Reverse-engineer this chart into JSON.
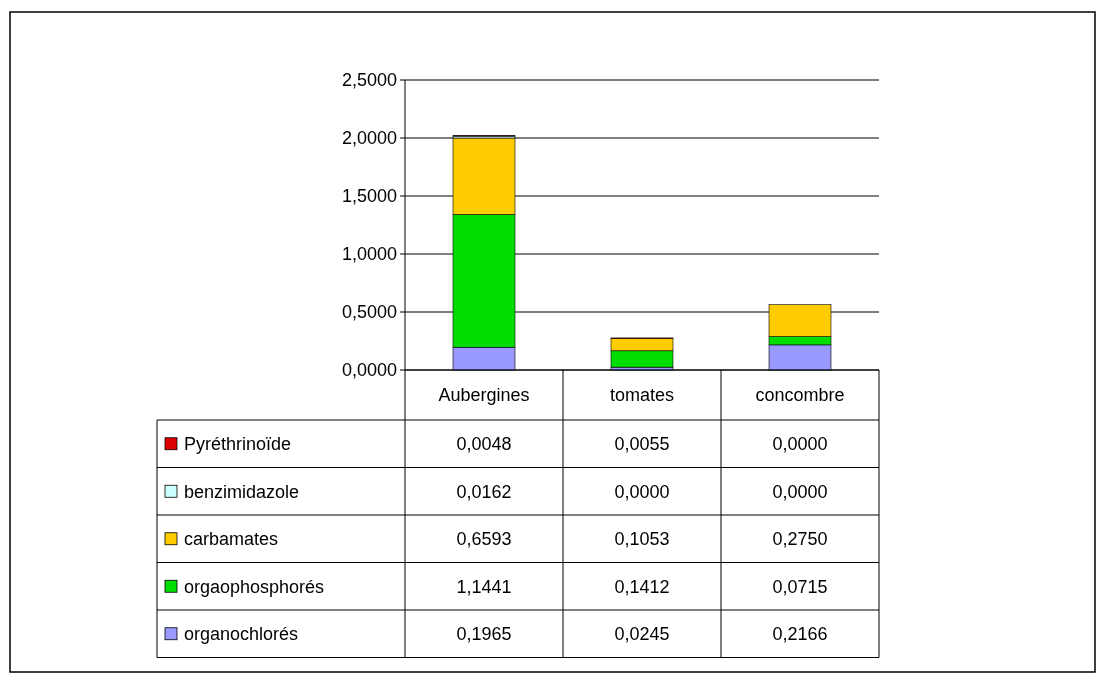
{
  "chart_data": {
    "type": "bar",
    "stacked": true,
    "categories": [
      "Aubergines",
      "tomates",
      "concombre"
    ],
    "series": [
      {
        "name": "organochlorés",
        "color": "#9999ff",
        "values": [
          0.1965,
          0.0245,
          0.2166
        ],
        "value_labels": [
          "0,1965",
          "0,0245",
          "0,2166"
        ]
      },
      {
        "name": "orgaophosphorés",
        "color": "#00dd00",
        "values": [
          1.1441,
          0.1412,
          0.0715
        ],
        "value_labels": [
          "1,1441",
          "0,1412",
          "0,0715"
        ]
      },
      {
        "name": "carbamates",
        "color": "#ffcc00",
        "values": [
          0.6593,
          0.1053,
          0.275
        ],
        "value_labels": [
          "0,6593",
          "0,1053",
          "0,2750"
        ]
      },
      {
        "name": "benzimidazole",
        "color": "#ccffff",
        "values": [
          0.0162,
          0,
          0
        ],
        "value_labels": [
          "0,0162",
          "0,0000",
          "0,0000"
        ]
      },
      {
        "name": "Pyréthrinoïde",
        "color": "#dd0000",
        "values": [
          0.0048,
          0.0055,
          0
        ],
        "value_labels": [
          "0,0048",
          "0,0055",
          "0,0000"
        ]
      }
    ],
    "ylim": [
      0,
      2.5
    ],
    "yticks": [
      {
        "value": 0,
        "label": "0,0000"
      },
      {
        "value": 0.5,
        "label": "0,5000"
      },
      {
        "value": 1,
        "label": "1,0000"
      },
      {
        "value": 1.5,
        "label": "1,5000"
      },
      {
        "value": 2,
        "label": "2,0000"
      },
      {
        "value": 2.5,
        "label": "2,5000"
      }
    ],
    "grid": "y",
    "legend": "bottom"
  }
}
